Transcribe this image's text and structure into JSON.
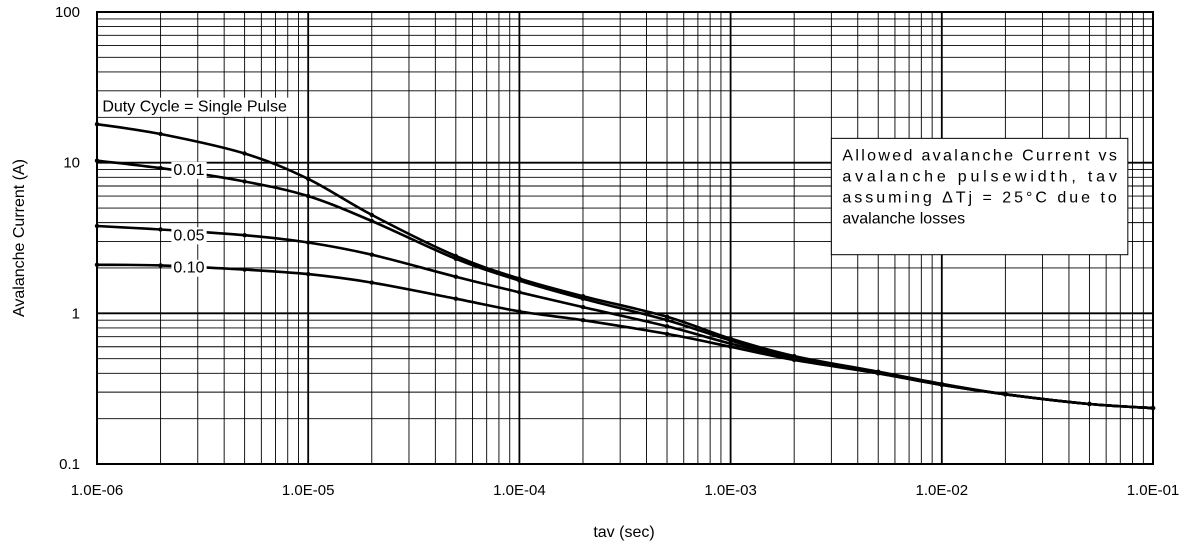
{
  "chart_data": {
    "type": "line",
    "title": "",
    "xlabel": "tav (sec)",
    "ylabel": "Avalanche Current (A)",
    "x_scale": "log",
    "y_scale": "log",
    "xlim": [
      1e-06,
      0.1
    ],
    "ylim": [
      0.1,
      100
    ],
    "grid": true,
    "x_tick_labels": [
      "1.0E-06",
      "1.0E-05",
      "1.0E-04",
      "1.0E-03",
      "1.0E-02",
      "1.0E-01"
    ],
    "y_tick_labels": [
      "0.1",
      "1",
      "10",
      "100"
    ],
    "series": [
      {
        "name": "Single Pulse",
        "x": [
          1e-06,
          2e-06,
          5e-06,
          1e-05,
          2e-05,
          5e-05,
          0.0001,
          0.0002,
          0.0005,
          0.001,
          0.002,
          0.005,
          0.01,
          0.02,
          0.05,
          0.1
        ],
        "y": [
          18,
          15.5,
          11.5,
          7.8,
          4.5,
          2.4,
          1.7,
          1.3,
          0.95,
          0.68,
          0.52,
          0.41,
          0.34,
          0.29,
          0.25,
          0.235
        ]
      },
      {
        "name": "0.01",
        "x": [
          1e-06,
          2e-06,
          5e-06,
          1e-05,
          2e-05,
          5e-05,
          0.0001,
          0.0002,
          0.0005,
          0.001,
          0.002,
          0.005,
          0.01,
          0.02,
          0.05,
          0.1
        ],
        "y": [
          10.3,
          9.2,
          7.5,
          6.0,
          4.1,
          2.3,
          1.65,
          1.25,
          0.9,
          0.66,
          0.51,
          0.405,
          0.335,
          0.29,
          0.25,
          0.235
        ]
      },
      {
        "name": "0.05",
        "x": [
          1e-06,
          2e-06,
          5e-06,
          1e-05,
          2e-05,
          5e-05,
          0.0001,
          0.0002,
          0.0005,
          0.001,
          0.002,
          0.005,
          0.01,
          0.02,
          0.05,
          0.1
        ],
        "y": [
          3.8,
          3.6,
          3.3,
          2.95,
          2.45,
          1.75,
          1.38,
          1.1,
          0.82,
          0.63,
          0.5,
          0.4,
          0.335,
          0.29,
          0.25,
          0.235
        ]
      },
      {
        "name": "0.10",
        "x": [
          1e-06,
          2e-06,
          5e-06,
          1e-05,
          2e-05,
          5e-05,
          0.0001,
          0.0002,
          0.0005,
          0.001,
          0.002,
          0.005,
          0.01,
          0.02,
          0.05,
          0.1
        ],
        "y": [
          2.1,
          2.08,
          1.95,
          1.82,
          1.6,
          1.25,
          1.03,
          0.9,
          0.73,
          0.6,
          0.49,
          0.4,
          0.335,
          0.29,
          0.25,
          0.235
        ]
      }
    ],
    "annotations": {
      "duty_cycle": "Duty Cycle = Single Pulse",
      "label_001": "0.01",
      "label_005": "0.05",
      "label_010": "0.10",
      "note_lines": [
        "Allowed avalanche Current vs",
        "avalanche pulsewidth, tav",
        "assuming ΔTj = 25°C due to",
        "avalanche losses"
      ]
    }
  }
}
